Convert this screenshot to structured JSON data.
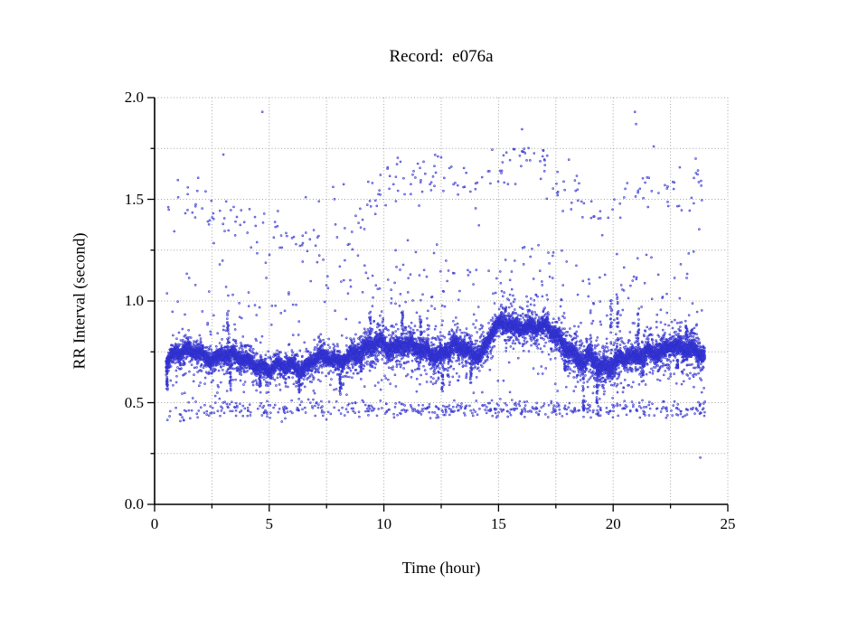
{
  "window": {
    "background": "#ffffff"
  },
  "chart_data": {
    "type": "scatter",
    "title": "Record:  e076a",
    "xlabel": "Time (hour)",
    "ylabel": "RR Interval (second)",
    "xlim": [
      0,
      25
    ],
    "ylim": [
      0.0,
      2.0
    ],
    "x_major_ticks": [
      0,
      5,
      10,
      15,
      20,
      25
    ],
    "x_tick_labels": [
      "0",
      "5",
      "10",
      "15",
      "20",
      "25"
    ],
    "x_minor_step": 2.5,
    "y_major_ticks": [
      0.0,
      0.5,
      1.0,
      1.5,
      2.0
    ],
    "y_tick_labels": [
      "0.0",
      "0.5",
      "1.0",
      "1.5",
      "2.0"
    ],
    "y_minor_step": 0.25,
    "grid": {
      "show": true,
      "style": "dotted",
      "color": "#a3a3a3"
    },
    "axis_color": "#000000",
    "legend": {
      "show": false
    },
    "marker": {
      "shape": "small-circle",
      "stroke": "rgba(47,47,206,0.85)",
      "fill": "rgba(115,115,238,0.38)",
      "radius": 0.95
    },
    "time_range_hours": [
      0.5,
      24.0
    ],
    "seed": 7,
    "main_band": {
      "description": "dense RR band (normal beats), center sampled every 0.25 h from t=0.5 to t=24",
      "t0": 0.5,
      "dt": 0.25,
      "centers": [
        0.7,
        0.73,
        0.74,
        0.75,
        0.75,
        0.75,
        0.75,
        0.74,
        0.74,
        0.75,
        0.76,
        0.75,
        0.74,
        0.73,
        0.72,
        0.71,
        0.7,
        0.69,
        0.68,
        0.68,
        0.69,
        0.69,
        0.7,
        0.69,
        0.69,
        0.7,
        0.72,
        0.72,
        0.71,
        0.7,
        0.69,
        0.71,
        0.73,
        0.74,
        0.75,
        0.76,
        0.77,
        0.78,
        0.78,
        0.77,
        0.77,
        0.78,
        0.78,
        0.78,
        0.78,
        0.77,
        0.77,
        0.76,
        0.75,
        0.77,
        0.78,
        0.77,
        0.77,
        0.75,
        0.74,
        0.75,
        0.77,
        0.84,
        0.86,
        0.87,
        0.87,
        0.86,
        0.86,
        0.86,
        0.86,
        0.85,
        0.85,
        0.84,
        0.83,
        0.8,
        0.76,
        0.73,
        0.7,
        0.68,
        0.72,
        0.7,
        0.68,
        0.7,
        0.71,
        0.73,
        0.73,
        0.74,
        0.74,
        0.75,
        0.77,
        0.77,
        0.76,
        0.77,
        0.78,
        0.77,
        0.76,
        0.76,
        0.76,
        0.75,
        0.74
      ],
      "base_halfwidth": 0.035,
      "width_t0": 0.5,
      "width_dt": 0.5,
      "width_mult": [
        1.0,
        1.0,
        1.0,
        1.0,
        1.0,
        1.2,
        1.1,
        1.0,
        1.0,
        1.0,
        1.0,
        1.0,
        1.0,
        1.0,
        1.0,
        1.0,
        1.1,
        1.2,
        1.3,
        1.4,
        1.4,
        1.4,
        1.4,
        1.3,
        1.3,
        1.3,
        1.2,
        1.2,
        1.2,
        1.1,
        1.1,
        1.1,
        1.1,
        1.1,
        1.1,
        1.3,
        1.4,
        1.4,
        1.4,
        1.4,
        1.3,
        1.2,
        1.2,
        1.2,
        1.2,
        1.2,
        1.2,
        1.1
      ],
      "down_spikes": [
        [
          0.55,
          0.14
        ],
        [
          3.3,
          0.2
        ],
        [
          4.6,
          0.12
        ],
        [
          6.3,
          0.14
        ],
        [
          8.1,
          0.16
        ],
        [
          9.0,
          0.1
        ],
        [
          12.55,
          0.2
        ],
        [
          13.8,
          0.16
        ],
        [
          17.9,
          0.12
        ],
        [
          18.7,
          0.22
        ],
        [
          19.3,
          0.2
        ],
        [
          21.3,
          0.12
        ],
        [
          22.8,
          0.1
        ]
      ],
      "up_bursts": [
        [
          3.2,
          0.2
        ],
        [
          9.4,
          0.18
        ],
        [
          10.8,
          0.17
        ],
        [
          11.6,
          0.15
        ],
        [
          15.3,
          0.1
        ],
        [
          19.9,
          0.3
        ],
        [
          20.2,
          0.35
        ],
        [
          21.1,
          0.22
        ],
        [
          23.2,
          0.12
        ]
      ]
    },
    "lower_band": {
      "description": "band of short RR intervals near 0.47 s",
      "center": 0.47,
      "spread_per_hour": [
        0.028,
        0.028,
        0.028,
        0.028,
        0.028,
        0.028,
        0.028,
        0.028,
        0.028,
        0.02,
        0.02,
        0.02,
        0.02,
        0.02,
        0.02,
        0.02,
        0.02,
        0.02,
        0.02,
        0.02,
        0.02,
        0.02,
        0.02,
        0.02
      ],
      "density_per_hour": [
        8,
        18,
        20,
        22,
        22,
        20,
        18,
        18,
        18,
        20,
        22,
        24,
        26,
        24,
        26,
        28,
        28,
        26,
        22,
        22,
        20,
        22,
        24,
        26
      ]
    },
    "mid_scatter": {
      "description": "sparse points between main band and ~1.25 s",
      "density_per_hour": [
        4,
        8,
        10,
        12,
        10,
        8,
        8,
        8,
        10,
        14,
        16,
        16,
        18,
        12,
        12,
        20,
        20,
        18,
        12,
        16,
        18,
        16,
        16,
        14
      ],
      "top_per_hour": [
        1.1,
        1.15,
        1.2,
        1.2,
        1.25,
        1.1,
        1.1,
        1.15,
        1.2,
        1.2,
        1.25,
        1.25,
        1.28,
        1.2,
        1.25,
        1.28,
        1.28,
        1.25,
        1.2,
        1.15,
        1.2,
        1.25,
        1.2,
        1.25
      ],
      "below_band_density_per_hour": 5,
      "below_band_floor": 0.545
    },
    "upper_cloud": {
      "description": "cloud of long RR intervals (1.3-1.8 s), center sampled every 0.5 h",
      "t0": 0.5,
      "dt": 0.5,
      "centers": [
        1.5,
        1.5,
        1.52,
        1.48,
        1.43,
        1.4,
        1.38,
        1.36,
        1.37,
        1.33,
        1.33,
        1.31,
        1.28,
        1.3,
        1.28,
        1.31,
        1.36,
        1.42,
        1.49,
        1.54,
        1.57,
        1.6,
        1.58,
        1.6,
        1.62,
        1.6,
        1.56,
        1.55,
        1.6,
        1.65,
        1.7,
        1.72,
        1.7,
        1.66,
        1.61,
        1.56,
        1.5,
        1.46,
        1.43,
        1.41,
        1.45,
        1.5,
        1.54,
        1.55,
        1.52,
        1.5,
        1.54,
        1.5
      ],
      "spread": 0.065,
      "density_per_hour": [
        6,
        12,
        12,
        12,
        10,
        12,
        12,
        12,
        12,
        14,
        14,
        14,
        14,
        10,
        10,
        14,
        16,
        14,
        12,
        10,
        8,
        12,
        12,
        12
      ]
    },
    "outliers": [
      [
        3.0,
        1.72
      ],
      [
        4.7,
        1.93
      ],
      [
        20.95,
        1.93
      ],
      [
        21.0,
        1.87
      ],
      [
        23.6,
        1.7
      ],
      [
        23.8,
        0.23
      ]
    ]
  }
}
